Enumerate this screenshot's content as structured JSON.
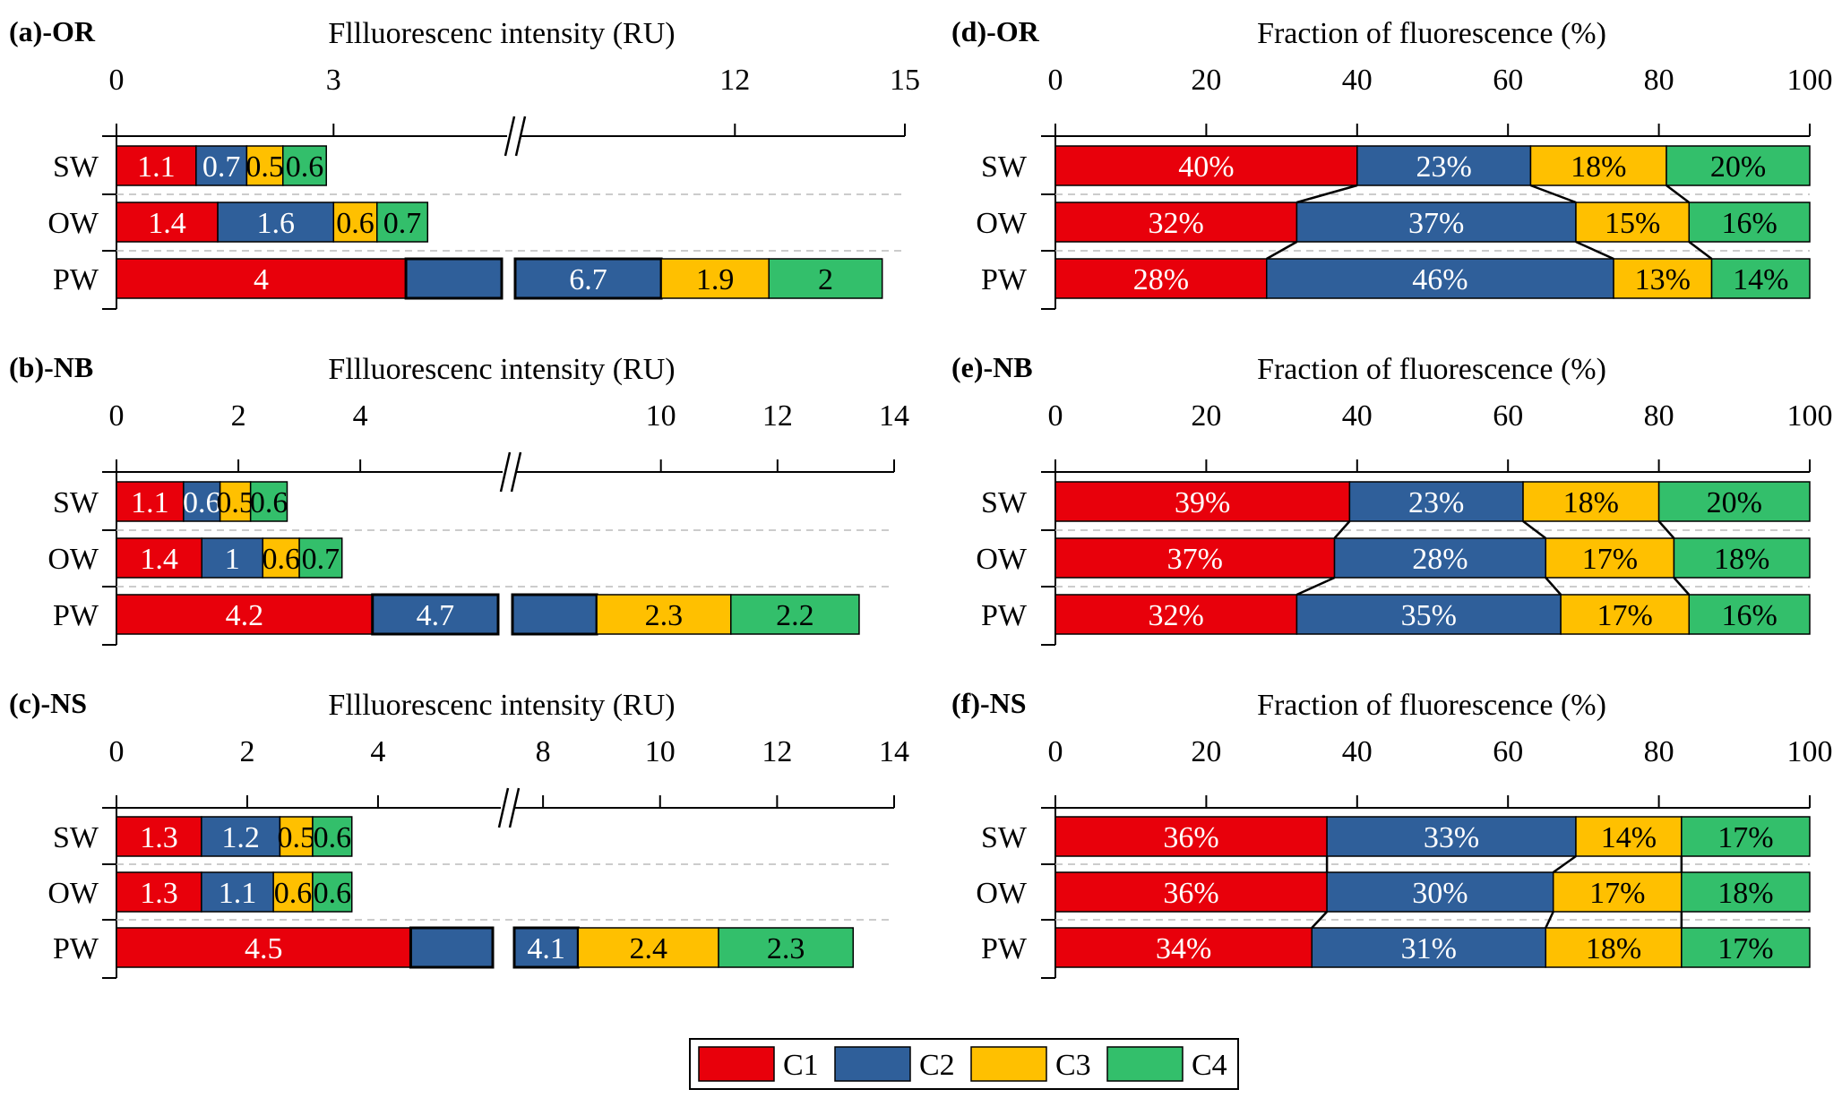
{
  "colors": {
    "C1": "#e8000b",
    "C2": "#2f5f9a",
    "C3": "#ffc000",
    "C4": "#33bf6b"
  },
  "legend": {
    "items": [
      "C1",
      "C2",
      "C3",
      "C4"
    ]
  },
  "chart_data": [
    {
      "id": "a",
      "type": "bar",
      "orientation": "horizontal",
      "stacked": true,
      "panel": "(a)-OR",
      "xlabel": "Fllluorescenc intensity (RU)",
      "xlim": [
        0,
        15
      ],
      "axis_break": true,
      "ticks": [
        "0",
        "3",
        "12",
        "15"
      ],
      "categories": [
        "SW",
        "OW",
        "PW"
      ],
      "series": [
        {
          "name": "C1",
          "values": [
            1.1,
            1.4,
            4
          ]
        },
        {
          "name": "C2",
          "values": [
            0.7,
            1.6,
            6.7
          ]
        },
        {
          "name": "C3",
          "values": [
            0.5,
            0.6,
            1.9
          ]
        },
        {
          "name": "C4",
          "values": [
            0.6,
            0.7,
            2
          ]
        }
      ]
    },
    {
      "id": "b",
      "type": "bar",
      "orientation": "horizontal",
      "stacked": true,
      "panel": "(b)-NB",
      "xlabel": "Fllluorescenc intensity (RU)",
      "xlim": [
        0,
        14
      ],
      "axis_break": true,
      "ticks": [
        "0",
        "2",
        "4",
        "10",
        "12",
        "14"
      ],
      "categories": [
        "SW",
        "OW",
        "PW"
      ],
      "series": [
        {
          "name": "C1",
          "values": [
            1.1,
            1.4,
            4.2
          ]
        },
        {
          "name": "C2",
          "values": [
            0.6,
            1,
            4.7
          ]
        },
        {
          "name": "C3",
          "values": [
            0.5,
            0.6,
            2.3
          ]
        },
        {
          "name": "C4",
          "values": [
            0.6,
            0.7,
            2.2
          ]
        }
      ]
    },
    {
      "id": "c",
      "type": "bar",
      "orientation": "horizontal",
      "stacked": true,
      "panel": "(c)-NS",
      "xlabel": "Fllluorescenc intensity (RU)",
      "xlim": [
        0,
        14
      ],
      "axis_break": true,
      "ticks": [
        "0",
        "2",
        "4",
        "8",
        "10",
        "12",
        "14"
      ],
      "categories": [
        "SW",
        "OW",
        "PW"
      ],
      "series": [
        {
          "name": "C1",
          "values": [
            1.3,
            1.3,
            4.5
          ]
        },
        {
          "name": "C2",
          "values": [
            1.2,
            1.1,
            4.1
          ]
        },
        {
          "name": "C3",
          "values": [
            0.5,
            0.6,
            2.4
          ]
        },
        {
          "name": "C4",
          "values": [
            0.6,
            0.6,
            2.3
          ]
        }
      ]
    },
    {
      "id": "d",
      "type": "bar",
      "orientation": "horizontal",
      "stacked": true,
      "panel": "(d)-OR",
      "xlabel": "Fraction of fluorescence (%)",
      "xlim": [
        0,
        100
      ],
      "ticks": [
        "0",
        "20",
        "40",
        "60",
        "80",
        "100"
      ],
      "categories": [
        "SW",
        "OW",
        "PW"
      ],
      "series": [
        {
          "name": "C1",
          "values": [
            40,
            32,
            28
          ]
        },
        {
          "name": "C2",
          "values": [
            23,
            37,
            46
          ]
        },
        {
          "name": "C3",
          "values": [
            18,
            15,
            13
          ]
        },
        {
          "name": "C4",
          "values": [
            20,
            16,
            14
          ]
        }
      ]
    },
    {
      "id": "e",
      "type": "bar",
      "orientation": "horizontal",
      "stacked": true,
      "panel": "(e)-NB",
      "xlabel": "Fraction of fluorescence (%)",
      "xlim": [
        0,
        100
      ],
      "ticks": [
        "0",
        "20",
        "40",
        "60",
        "80",
        "100"
      ],
      "categories": [
        "SW",
        "OW",
        "PW"
      ],
      "series": [
        {
          "name": "C1",
          "values": [
            39,
            37,
            32
          ]
        },
        {
          "name": "C2",
          "values": [
            23,
            28,
            35
          ]
        },
        {
          "name": "C3",
          "values": [
            18,
            17,
            17
          ]
        },
        {
          "name": "C4",
          "values": [
            20,
            18,
            16
          ]
        }
      ]
    },
    {
      "id": "f",
      "type": "bar",
      "orientation": "horizontal",
      "stacked": true,
      "panel": "(f)-NS",
      "xlabel": "Fraction of fluorescence (%)",
      "xlim": [
        0,
        100
      ],
      "ticks": [
        "0",
        "20",
        "40",
        "60",
        "80",
        "100"
      ],
      "categories": [
        "SW",
        "OW",
        "PW"
      ],
      "series": [
        {
          "name": "C1",
          "values": [
            36,
            36,
            34
          ]
        },
        {
          "name": "C2",
          "values": [
            33,
            30,
            31
          ]
        },
        {
          "name": "C3",
          "values": [
            14,
            17,
            18
          ]
        },
        {
          "name": "C4",
          "values": [
            17,
            18,
            17
          ]
        }
      ]
    }
  ]
}
